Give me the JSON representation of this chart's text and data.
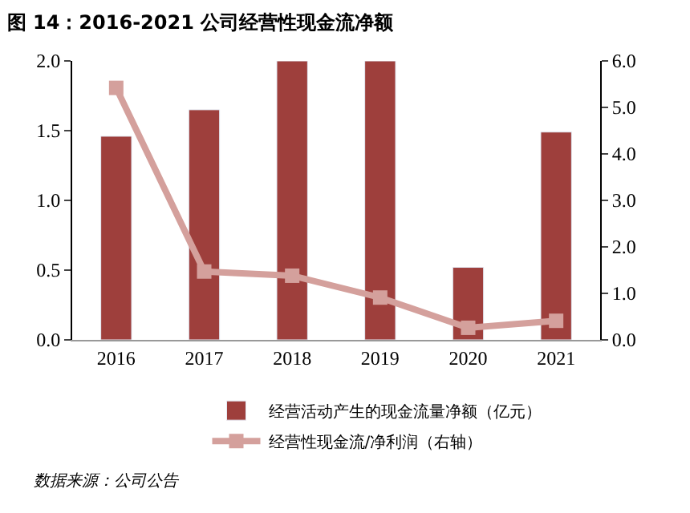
{
  "chart_data": {
    "type": "bar",
    "title": "图 14：2016-2021 公司经营性现金流净额",
    "categories": [
      "2016",
      "2017",
      "2018",
      "2019",
      "2020",
      "2021"
    ],
    "series": [
      {
        "name": "经营活动产生的现金流量净额（亿元）",
        "color": "#9e3f3c",
        "values": [
          1.46,
          1.65,
          2.0,
          2.0,
          0.52,
          1.49
        ]
      },
      {
        "name": "经营性现金流/净利润（右轴）",
        "color": "#d4a09c",
        "type": "line",
        "axis": "y2",
        "marker": "square",
        "values": [
          5.42,
          1.47,
          1.38,
          0.91,
          0.26,
          0.41
        ]
      }
    ],
    "ylim": [
      0,
      2.0
    ],
    "yticks": [
      {
        "value": 0,
        "label": "0.0"
      },
      {
        "value": 0.5,
        "label": "0.5"
      },
      {
        "value": 1.0,
        "label": "1.0"
      },
      {
        "value": 1.5,
        "label": "1.5"
      },
      {
        "value": 2.0,
        "label": "2.0"
      }
    ],
    "y2lim": [
      0,
      6.0
    ],
    "y2ticks": [
      {
        "value": 0,
        "label": "0.0"
      },
      {
        "value": 1,
        "label": "1.0"
      },
      {
        "value": 2,
        "label": "2.0"
      },
      {
        "value": 3,
        "label": "3.0"
      },
      {
        "value": 4,
        "label": "4.0"
      },
      {
        "value": 5,
        "label": "5.0"
      },
      {
        "value": 6,
        "label": "6.0"
      }
    ],
    "legend": "bottom",
    "annotations": [
      "数据来源：公司公告"
    ]
  }
}
